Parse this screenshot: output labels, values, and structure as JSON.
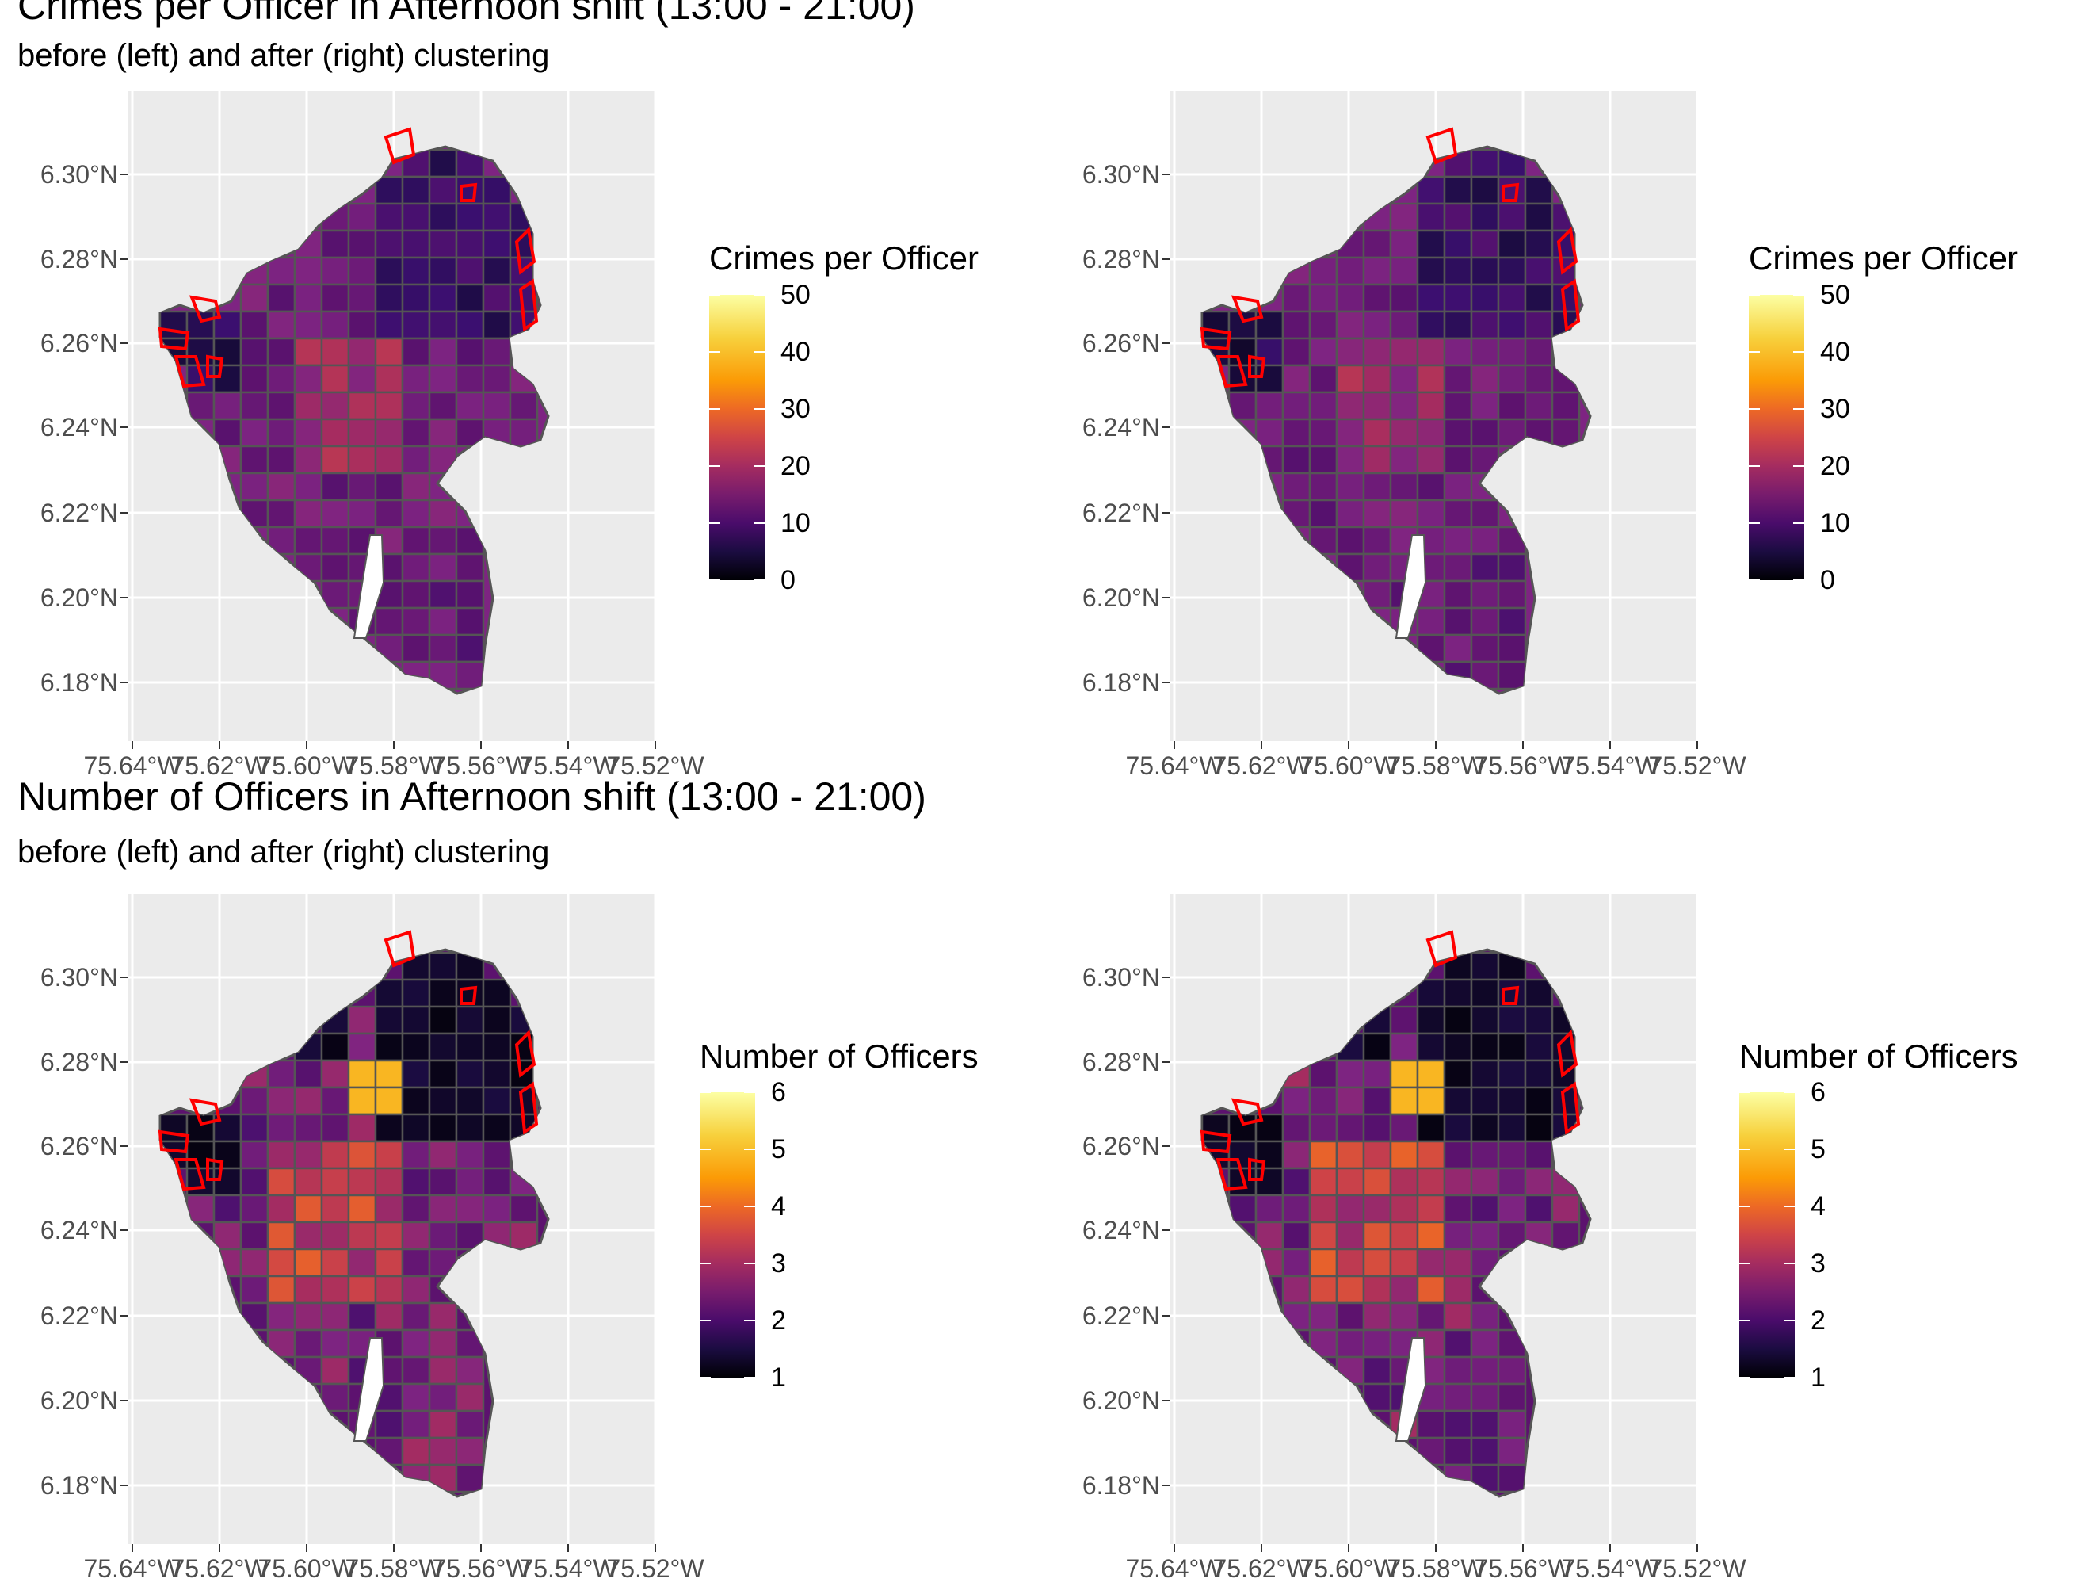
{
  "section1": {
    "title": "Crimes per Officer in Afternoon shift (13:00 - 21:00)",
    "subtitle": "before (left) and after (right) clustering"
  },
  "section2": {
    "title": "Number of Officers in Afternoon shift (13:00 - 21:00)",
    "subtitle": "before (left) and after (right) clustering"
  },
  "axes": {
    "y_ticks": [
      "6.30°N",
      "6.28°N",
      "6.26°N",
      "6.24°N",
      "6.22°N",
      "6.20°N",
      "6.18°N"
    ],
    "x_ticks": [
      "75.64°W",
      "75.62°W",
      "75.60°W",
      "75.58°W",
      "75.56°W",
      "75.54°W",
      "75.52°W"
    ]
  },
  "legend_crimes": {
    "title": "Crimes per Officer",
    "ticks": [
      "50",
      "40",
      "30",
      "20",
      "10",
      "0"
    ]
  },
  "legend_officers": {
    "title": "Number of Officers",
    "ticks": [
      "6",
      "5",
      "4",
      "3",
      "2",
      "1"
    ]
  },
  "colors": {
    "panel_background": "#ebebeb",
    "district_outline": "#555555",
    "highlight_outline": "#ff0000",
    "colormap": "inferno"
  }
}
